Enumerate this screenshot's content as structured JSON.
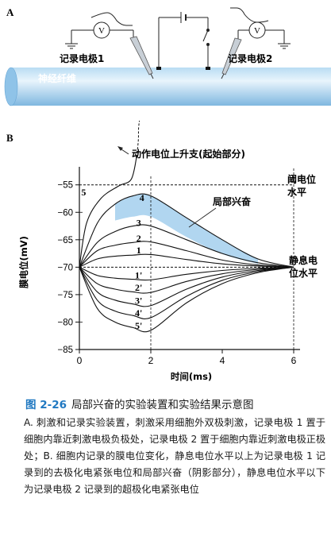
{
  "panel_a": {
    "label": "A",
    "electrode1": "记录电极1",
    "electrode2": "记录电极2",
    "voltmeter": "V",
    "fiber": "神经纤维"
  },
  "panel_b": {
    "label": "B",
    "annotation_spike": "动作电位上升支(起始部分)",
    "threshold_label": "阈电位\n水平",
    "resting_label": "静息电\n位水平",
    "local_label": "局部兴奋"
  },
  "chart_data": {
    "type": "line",
    "xlabel": "时间(ms)",
    "ylabel": "膜电位(mV)",
    "xlim": [
      0,
      6
    ],
    "ylim": [
      -85,
      -52
    ],
    "xticks": [
      0,
      2,
      4,
      6
    ],
    "yticks": [
      -85,
      -80,
      -75,
      -70,
      -65,
      -60,
      -55
    ],
    "threshold": -55,
    "resting": -70,
    "series": [
      {
        "name": "5",
        "points": [
          [
            0,
            -70
          ],
          [
            0.2,
            -62
          ],
          [
            0.6,
            -57.5
          ],
          [
            1.1,
            -55.2
          ],
          [
            1.45,
            -54
          ],
          [
            1.6,
            -50
          ]
        ]
      },
      {
        "name": "4",
        "points": [
          [
            0,
            -70
          ],
          [
            0.5,
            -62
          ],
          [
            1.0,
            -58.5
          ],
          [
            1.5,
            -57
          ],
          [
            2.0,
            -57
          ],
          [
            3.0,
            -61
          ],
          [
            4.0,
            -65
          ],
          [
            5.0,
            -68.5
          ],
          [
            6.0,
            -70
          ]
        ]
      },
      {
        "name": "3",
        "points": [
          [
            0,
            -70
          ],
          [
            0.5,
            -65.5
          ],
          [
            1.0,
            -63.5
          ],
          [
            1.5,
            -62.5
          ],
          [
            2.0,
            -62.5
          ],
          [
            3.0,
            -65
          ],
          [
            4.0,
            -67.5
          ],
          [
            5.0,
            -69.2
          ],
          [
            6.0,
            -70
          ]
        ]
      },
      {
        "name": "2",
        "points": [
          [
            0,
            -70
          ],
          [
            0.5,
            -67
          ],
          [
            1.0,
            -66
          ],
          [
            1.5,
            -65.5
          ],
          [
            2.0,
            -65.4
          ],
          [
            3.0,
            -67
          ],
          [
            4.0,
            -68.7
          ],
          [
            5.0,
            -69.6
          ],
          [
            6.0,
            -70
          ]
        ]
      },
      {
        "name": "1",
        "points": [
          [
            0,
            -70
          ],
          [
            0.5,
            -68.5
          ],
          [
            1.0,
            -68
          ],
          [
            1.5,
            -67.8
          ],
          [
            2.0,
            -67.7
          ],
          [
            3.0,
            -68.6
          ],
          [
            4.0,
            -69.4
          ],
          [
            5.0,
            -69.8
          ],
          [
            6.0,
            -70
          ]
        ]
      },
      {
        "name": "1'",
        "points": [
          [
            0,
            -70
          ],
          [
            0.5,
            -71.5
          ],
          [
            1.0,
            -72
          ],
          [
            1.5,
            -72.2
          ],
          [
            2.0,
            -72.3
          ],
          [
            3.0,
            -71.3
          ],
          [
            4.0,
            -70.6
          ],
          [
            5.0,
            -70.2
          ],
          [
            6.0,
            -70
          ]
        ]
      },
      {
        "name": "2'",
        "points": [
          [
            0,
            -70
          ],
          [
            0.5,
            -73
          ],
          [
            1.0,
            -74
          ],
          [
            1.5,
            -74.5
          ],
          [
            2.0,
            -74.6
          ],
          [
            3.0,
            -72.6
          ],
          [
            4.0,
            -71.2
          ],
          [
            5.0,
            -70.4
          ],
          [
            6.0,
            -70
          ]
        ]
      },
      {
        "name": "3'",
        "points": [
          [
            0,
            -70
          ],
          [
            0.5,
            -74.5
          ],
          [
            1.0,
            -76
          ],
          [
            1.5,
            -76.7
          ],
          [
            2.0,
            -77
          ],
          [
            3.0,
            -74
          ],
          [
            4.0,
            -71.8
          ],
          [
            5.0,
            -70.6
          ],
          [
            6.0,
            -70
          ]
        ]
      },
      {
        "name": "4'",
        "points": [
          [
            0,
            -70
          ],
          [
            0.5,
            -76
          ],
          [
            1.0,
            -78
          ],
          [
            1.5,
            -78.8
          ],
          [
            2.0,
            -79.2
          ],
          [
            3.0,
            -75.3
          ],
          [
            4.0,
            -72.4
          ],
          [
            5.0,
            -70.8
          ],
          [
            6.0,
            -70
          ]
        ]
      },
      {
        "name": "5'",
        "points": [
          [
            0,
            -70
          ],
          [
            0.5,
            -77.5
          ],
          [
            1.0,
            -80
          ],
          [
            1.5,
            -81
          ],
          [
            2.0,
            -81.5
          ],
          [
            3.0,
            -76.5
          ],
          [
            4.0,
            -73
          ],
          [
            5.0,
            -71
          ],
          [
            6.0,
            -70
          ]
        ]
      }
    ],
    "shaded_region": {
      "name": "局部兴奋",
      "upper": [
        [
          1.0,
          -58.5
        ],
        [
          1.5,
          -57
        ],
        [
          2.0,
          -57
        ],
        [
          3.0,
          -61
        ],
        [
          4.0,
          -65
        ],
        [
          5.0,
          -68.5
        ]
      ],
      "lower": [
        [
          1.0,
          -61.5
        ],
        [
          1.5,
          -60.8
        ],
        [
          2.0,
          -60.8
        ],
        [
          3.0,
          -64.5
        ],
        [
          4.0,
          -67.6
        ],
        [
          5.0,
          -69.4
        ]
      ]
    },
    "label_values": {
      "5": -57.2,
      "4": -58.2,
      "3": -62.8,
      "2": -65.6,
      "1": -67.8,
      "1'": -72.3,
      "2'": -74.6,
      "3'": -77,
      "4'": -79.2,
      "5'": -81.5
    }
  },
  "caption": {
    "fig_num": "图 2-26",
    "title": "局部兴奋的实验装置和实验结果示意图",
    "body": "A. 刺激和记录实验装置，刺激采用细胞外双极刺激，记录电极 1 置于细胞内靠近刺激电极负极处，记录电极 2 置于细胞内靠近刺激电极正极处；B. 细胞内记录的膜电位变化，静息电位水平以上为记录电极 1 记录到的去极化电紧张电位和局部兴奋（阴影部分），静息电位水平以下为记录电极 2 记录到的超极化电紧张电位"
  },
  "colors": {
    "fiber": "#8fc3e8",
    "fiber_light": "#d6ebf8",
    "shade": "#a9d1ee",
    "caption_accent": "#1f78c1"
  }
}
